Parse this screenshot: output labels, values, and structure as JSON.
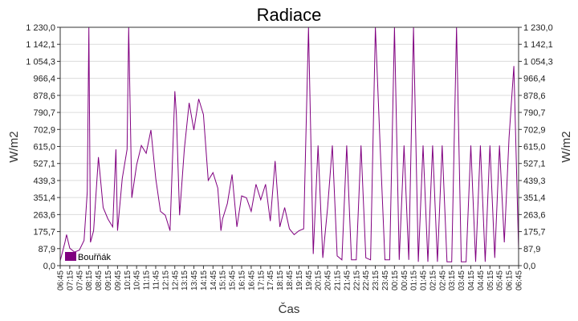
{
  "chart_data": {
    "type": "line",
    "title": "Radiace",
    "xlabel": "Čas",
    "ylabel": "W/m2",
    "ylabel_right": "W/m2",
    "ylim": [
      0,
      1230
    ],
    "grid": true,
    "legend_position": "bottom-left",
    "y_ticks": [
      "0,0",
      "87,9",
      "175,7",
      "263,6",
      "351,4",
      "439,3",
      "527,1",
      "615,0",
      "702,9",
      "790,7",
      "878,6",
      "966,4",
      "1 054,3",
      "1 142,1",
      "1 230,0"
    ],
    "x_ticks": [
      "06:45",
      "07:15",
      "07:45",
      "08:15",
      "08:45",
      "09:15",
      "09:45",
      "10:15",
      "10:45",
      "11:15",
      "11:45",
      "12:15",
      "12:45",
      "13:15",
      "13:45",
      "14:15",
      "14:45",
      "15:15",
      "15:45",
      "16:15",
      "16:45",
      "17:15",
      "17:45",
      "18:15",
      "18:45",
      "19:15",
      "19:45",
      "20:15",
      "20:45",
      "21:15",
      "21:45",
      "22:15",
      "22:45",
      "23:15",
      "23:45",
      "00:15",
      "00:45",
      "01:15",
      "01:45",
      "02:15",
      "02:45",
      "03:15",
      "03:45",
      "04:15",
      "04:45",
      "05:15",
      "05:45",
      "06:15",
      "06:45"
    ],
    "series": [
      {
        "name": "Bouřňák",
        "color": "#800080",
        "x": [
          "06:45",
          "07:00",
          "07:05",
          "07:15",
          "07:30",
          "07:45",
          "08:00",
          "08:10",
          "08:15",
          "08:20",
          "08:30",
          "08:45",
          "09:00",
          "09:15",
          "09:30",
          "09:40",
          "09:45",
          "10:00",
          "10:15",
          "10:20",
          "10:30",
          "10:45",
          "11:00",
          "11:15",
          "11:30",
          "11:45",
          "12:00",
          "12:15",
          "12:30",
          "12:45",
          "12:50",
          "13:00",
          "13:15",
          "13:30",
          "13:45",
          "14:00",
          "14:15",
          "14:30",
          "14:45",
          "15:00",
          "15:10",
          "15:15",
          "15:30",
          "15:45",
          "16:00",
          "16:15",
          "16:30",
          "16:45",
          "17:00",
          "17:15",
          "17:30",
          "17:45",
          "18:00",
          "18:15",
          "18:30",
          "18:45",
          "19:00",
          "19:15",
          "19:30",
          "19:45",
          "20:00",
          "20:15",
          "20:30",
          "20:45",
          "21:00",
          "21:15",
          "21:30",
          "21:45",
          "22:00",
          "22:15",
          "22:30",
          "22:45",
          "23:00",
          "23:15",
          "23:30",
          "23:45",
          "00:00",
          "00:15",
          "00:30",
          "00:45",
          "01:00",
          "01:15",
          "01:30",
          "01:45",
          "02:00",
          "02:15",
          "02:30",
          "02:45",
          "03:00",
          "03:15",
          "03:30",
          "03:45",
          "04:00",
          "04:15",
          "04:30",
          "04:45",
          "05:00",
          "05:15",
          "05:30",
          "05:45",
          "06:00",
          "06:15",
          "06:30",
          "06:45"
        ],
        "values": [
          25,
          120,
          160,
          90,
          70,
          80,
          130,
          380,
          1230,
          120,
          180,
          560,
          300,
          240,
          200,
          600,
          180,
          450,
          600,
          1230,
          350,
          520,
          620,
          580,
          700,
          450,
          280,
          260,
          180,
          900,
          780,
          260,
          600,
          840,
          700,
          860,
          780,
          440,
          480,
          400,
          180,
          240,
          320,
          470,
          200,
          360,
          350,
          280,
          420,
          340,
          420,
          230,
          540,
          200,
          300,
          190,
          160,
          180,
          190,
          1230,
          60,
          620,
          40,
          300,
          620,
          50,
          30,
          620,
          30,
          30,
          620,
          40,
          30,
          1230,
          620,
          30,
          30,
          1230,
          30,
          620,
          30,
          1230,
          20,
          620,
          20,
          620,
          20,
          620,
          20,
          20,
          1230,
          20,
          20,
          620,
          20,
          620,
          20,
          620,
          40,
          620,
          120,
          660,
          1030,
          80
        ]
      }
    ]
  }
}
